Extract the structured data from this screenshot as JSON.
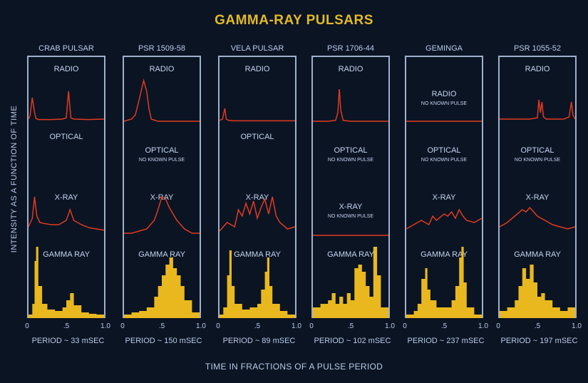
{
  "title": "GAMMA-RAY PULSARS",
  "y_label": "INTENSITY AS A FUNCTION OF TIME",
  "x_label": "TIME IN FRACTIONS OF A PULSE PERIOD",
  "colors": {
    "title": "#e2b92a",
    "curve": "#e03b1f",
    "gamma_fill": "#e8b81e",
    "frame": "#9fb0cc",
    "background": "#0b1423"
  },
  "band_labels": {
    "radio": "RADIO",
    "optical": "OPTICAL",
    "xray": "X-RAY",
    "gamma": "GAMMA RAY",
    "no_pulse": "NO KNOWN PULSE"
  },
  "chart_data": [
    {
      "type": "line",
      "name": "CRAB PULSAR",
      "period": "PERIOD ~ 33 mSEC",
      "xlim": [
        0,
        1
      ],
      "tick_labels": [
        "0",
        ".5",
        "1.0"
      ],
      "radio": {
        "x": [
          0,
          0.02,
          0.05,
          0.08,
          0.1,
          0.14,
          0.3,
          0.45,
          0.5,
          0.53,
          0.56,
          0.6,
          0.8,
          1.0
        ],
        "y": [
          0.05,
          0.12,
          0.55,
          0.2,
          0.06,
          0.04,
          0.04,
          0.05,
          0.08,
          0.7,
          0.08,
          0.05,
          0.04,
          0.05
        ]
      },
      "optical": null,
      "xray": {
        "x": [
          0,
          0.05,
          0.08,
          0.11,
          0.15,
          0.2,
          0.3,
          0.4,
          0.5,
          0.55,
          0.6,
          0.7,
          0.8,
          0.9,
          1.0
        ],
        "y": [
          0.2,
          0.4,
          0.9,
          0.45,
          0.3,
          0.28,
          0.25,
          0.25,
          0.35,
          0.6,
          0.35,
          0.25,
          0.18,
          0.15,
          0.12
        ]
      },
      "gamma": {
        "x": [
          0,
          0.05,
          0.08,
          0.1,
          0.13,
          0.18,
          0.25,
          0.35,
          0.45,
          0.5,
          0.55,
          0.6,
          0.7,
          0.8,
          0.9,
          1.0
        ],
        "y": [
          0.05,
          0.2,
          0.8,
          1.0,
          0.45,
          0.2,
          0.12,
          0.1,
          0.15,
          0.25,
          0.35,
          0.18,
          0.08,
          0.06,
          0.05,
          0.05
        ]
      }
    },
    {
      "type": "line",
      "name": "PSR 1509-58",
      "period": "PERIOD ~ 150 mSEC",
      "xlim": [
        0,
        1
      ],
      "tick_labels": [
        "0",
        ".5",
        "1.0"
      ],
      "radio": {
        "x": [
          0,
          0.1,
          0.15,
          0.2,
          0.24,
          0.26,
          0.3,
          0.33,
          0.36,
          0.45,
          0.6,
          0.8,
          1.0
        ],
        "y": [
          0,
          0.05,
          0.15,
          0.5,
          0.8,
          0.95,
          0.7,
          0.3,
          0.05,
          0,
          0,
          0,
          0
        ]
      },
      "optical": "none",
      "xray": {
        "x": [
          0,
          0.1,
          0.2,
          0.3,
          0.4,
          0.45,
          0.5,
          0.55,
          0.6,
          0.65,
          0.7,
          0.8,
          0.9,
          1.0
        ],
        "y": [
          0.05,
          0.05,
          0.1,
          0.15,
          0.35,
          0.6,
          0.9,
          0.85,
          0.65,
          0.5,
          0.35,
          0.15,
          0.05,
          0.05
        ]
      },
      "gamma": {
        "x": [
          0,
          0.1,
          0.2,
          0.3,
          0.4,
          0.45,
          0.5,
          0.55,
          0.6,
          0.65,
          0.7,
          0.75,
          0.8,
          0.9,
          1.0
        ],
        "y": [
          0.05,
          0.08,
          0.1,
          0.15,
          0.3,
          0.45,
          0.6,
          0.75,
          0.85,
          0.7,
          0.6,
          0.45,
          0.25,
          0.08,
          0.05
        ]
      }
    },
    {
      "type": "line",
      "name": "VELA PULSAR",
      "period": "PERIOD ~ 89 mSEC",
      "xlim": [
        0,
        1
      ],
      "tick_labels": [
        "0",
        ".5",
        "1.0"
      ],
      "radio": {
        "x": [
          0,
          0.04,
          0.07,
          0.09,
          0.12,
          0.2,
          0.4,
          0.6,
          0.8,
          1.0
        ],
        "y": [
          0.02,
          0.05,
          0.3,
          0.05,
          0.02,
          0.01,
          0.01,
          0.01,
          0.01,
          0.01
        ]
      },
      "optical": null,
      "xray": {
        "x": [
          0,
          0.1,
          0.2,
          0.25,
          0.3,
          0.35,
          0.4,
          0.45,
          0.5,
          0.55,
          0.6,
          0.65,
          0.7,
          0.75,
          0.8,
          0.9,
          1.0
        ],
        "y": [
          0.1,
          0.3,
          0.2,
          0.6,
          0.45,
          0.75,
          0.5,
          0.8,
          0.4,
          0.65,
          0.85,
          0.5,
          0.9,
          0.45,
          0.3,
          0.15,
          0.2
        ]
      },
      "gamma": {
        "x": [
          0,
          0.05,
          0.1,
          0.13,
          0.16,
          0.2,
          0.3,
          0.4,
          0.5,
          0.55,
          0.6,
          0.63,
          0.66,
          0.7,
          0.8,
          0.9,
          1.0
        ],
        "y": [
          0.05,
          0.15,
          0.6,
          0.95,
          0.45,
          0.2,
          0.12,
          0.15,
          0.2,
          0.4,
          0.65,
          0.85,
          0.45,
          0.2,
          0.1,
          0.05,
          0.05
        ]
      }
    },
    {
      "type": "line",
      "name": "PSR 1706-44",
      "period": "PERIOD ~ 102 mSEC",
      "xlim": [
        0,
        1
      ],
      "tick_labels": [
        "0",
        ".5",
        "1.0"
      ],
      "radio": {
        "x": [
          0,
          0.2,
          0.3,
          0.33,
          0.35,
          0.37,
          0.4,
          0.5,
          0.7,
          1.0
        ],
        "y": [
          0,
          0,
          0.02,
          0.2,
          0.75,
          0.25,
          0.02,
          0,
          0,
          0
        ]
      },
      "optical": "none",
      "xray": "none",
      "gamma": {
        "x": [
          0,
          0.1,
          0.2,
          0.25,
          0.3,
          0.35,
          0.4,
          0.45,
          0.5,
          0.55,
          0.6,
          0.65,
          0.7,
          0.75,
          0.8,
          0.85,
          0.9,
          1.0
        ],
        "y": [
          0.15,
          0.2,
          0.25,
          0.35,
          0.2,
          0.3,
          0.2,
          0.35,
          0.25,
          0.7,
          0.75,
          0.65,
          0.45,
          0.3,
          1.0,
          0.6,
          0.15,
          0.1
        ]
      }
    },
    {
      "type": "line",
      "name": "GEMINGA",
      "period": "PERIOD ~ 237 mSEC",
      "xlim": [
        0,
        1
      ],
      "tick_labels": [
        "0",
        ".5",
        "1.0"
      ],
      "radio": "none",
      "optical": "none",
      "xray": {
        "x": [
          0,
          0.1,
          0.2,
          0.3,
          0.35,
          0.4,
          0.5,
          0.55,
          0.6,
          0.65,
          0.7,
          0.75,
          0.8,
          0.9,
          1.0
        ],
        "y": [
          0.15,
          0.25,
          0.35,
          0.25,
          0.45,
          0.35,
          0.5,
          0.45,
          0.55,
          0.4,
          0.6,
          0.45,
          0.35,
          0.3,
          0.4
        ]
      },
      "gamma": {
        "x": [
          0,
          0.1,
          0.15,
          0.2,
          0.25,
          0.28,
          0.32,
          0.4,
          0.5,
          0.6,
          0.65,
          0.7,
          0.73,
          0.76,
          0.8,
          0.9,
          1.0
        ],
        "y": [
          0.05,
          0.1,
          0.2,
          0.55,
          0.7,
          0.4,
          0.25,
          0.15,
          0.15,
          0.25,
          0.45,
          0.85,
          1.0,
          0.5,
          0.15,
          0.05,
          0.05
        ]
      }
    },
    {
      "type": "line",
      "name": "PSR 1055-52",
      "period": "PERIOD ~ 197 mSEC",
      "xlim": [
        0,
        1
      ],
      "tick_labels": [
        "0",
        ".5",
        "1.0"
      ],
      "radio": {
        "x": [
          0,
          0.2,
          0.4,
          0.5,
          0.52,
          0.54,
          0.56,
          0.58,
          0.62,
          0.7,
          0.85,
          0.92,
          0.95,
          0.97,
          1.0
        ],
        "y": [
          0.05,
          0.05,
          0.05,
          0.08,
          0.5,
          0.2,
          0.45,
          0.1,
          0.05,
          0.05,
          0.05,
          0.1,
          0.45,
          0.15,
          0.05
        ]
      },
      "optical": "none",
      "xray": {
        "x": [
          0,
          0.1,
          0.2,
          0.3,
          0.35,
          0.4,
          0.45,
          0.5,
          0.6,
          0.7,
          0.8,
          0.9,
          1.0
        ],
        "y": [
          0.2,
          0.3,
          0.45,
          0.6,
          0.55,
          0.65,
          0.55,
          0.45,
          0.35,
          0.25,
          0.2,
          0.15,
          0.2
        ]
      },
      "gamma": {
        "x": [
          0,
          0.1,
          0.2,
          0.25,
          0.3,
          0.35,
          0.4,
          0.45,
          0.5,
          0.55,
          0.6,
          0.7,
          0.8,
          0.9,
          1.0
        ],
        "y": [
          0.1,
          0.15,
          0.25,
          0.45,
          0.7,
          0.55,
          0.75,
          0.5,
          0.3,
          0.35,
          0.25,
          0.15,
          0.1,
          0.15,
          0.05
        ]
      }
    }
  ]
}
